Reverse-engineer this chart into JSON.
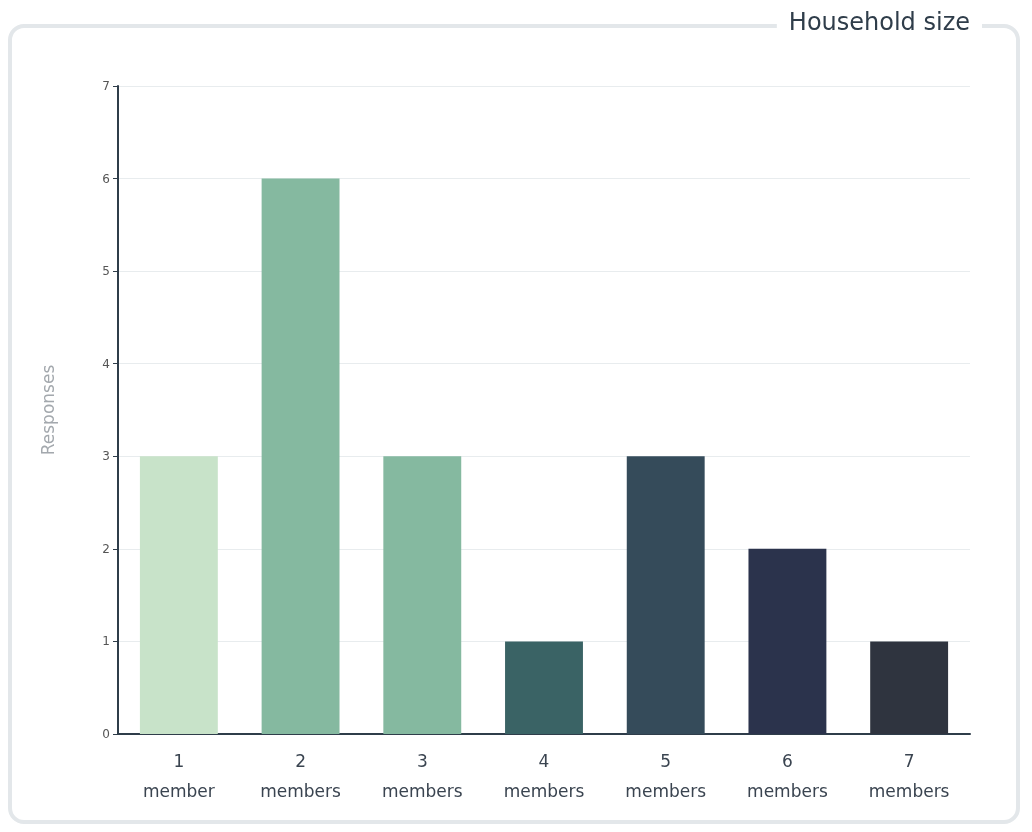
{
  "chart_data": {
    "type": "bar",
    "title": "Household size",
    "ylabel": "Responses",
    "categories": [
      "1\nmember",
      "2\nmembers",
      "3\nmembers",
      "4\nmembers",
      "5\nmembers",
      "6\nmembers",
      "7\nmembers"
    ],
    "values": [
      3,
      6,
      3,
      1,
      3,
      2,
      1
    ],
    "colors": [
      "#c8e3c9",
      "#85b9a0",
      "#85b9a0",
      "#3a6365",
      "#354b5a",
      "#2b334c",
      "#2f343f"
    ],
    "ylim": [
      0,
      7
    ],
    "yticks": [
      0,
      1,
      2,
      3,
      4,
      5,
      6,
      7
    ],
    "grid": "y"
  }
}
